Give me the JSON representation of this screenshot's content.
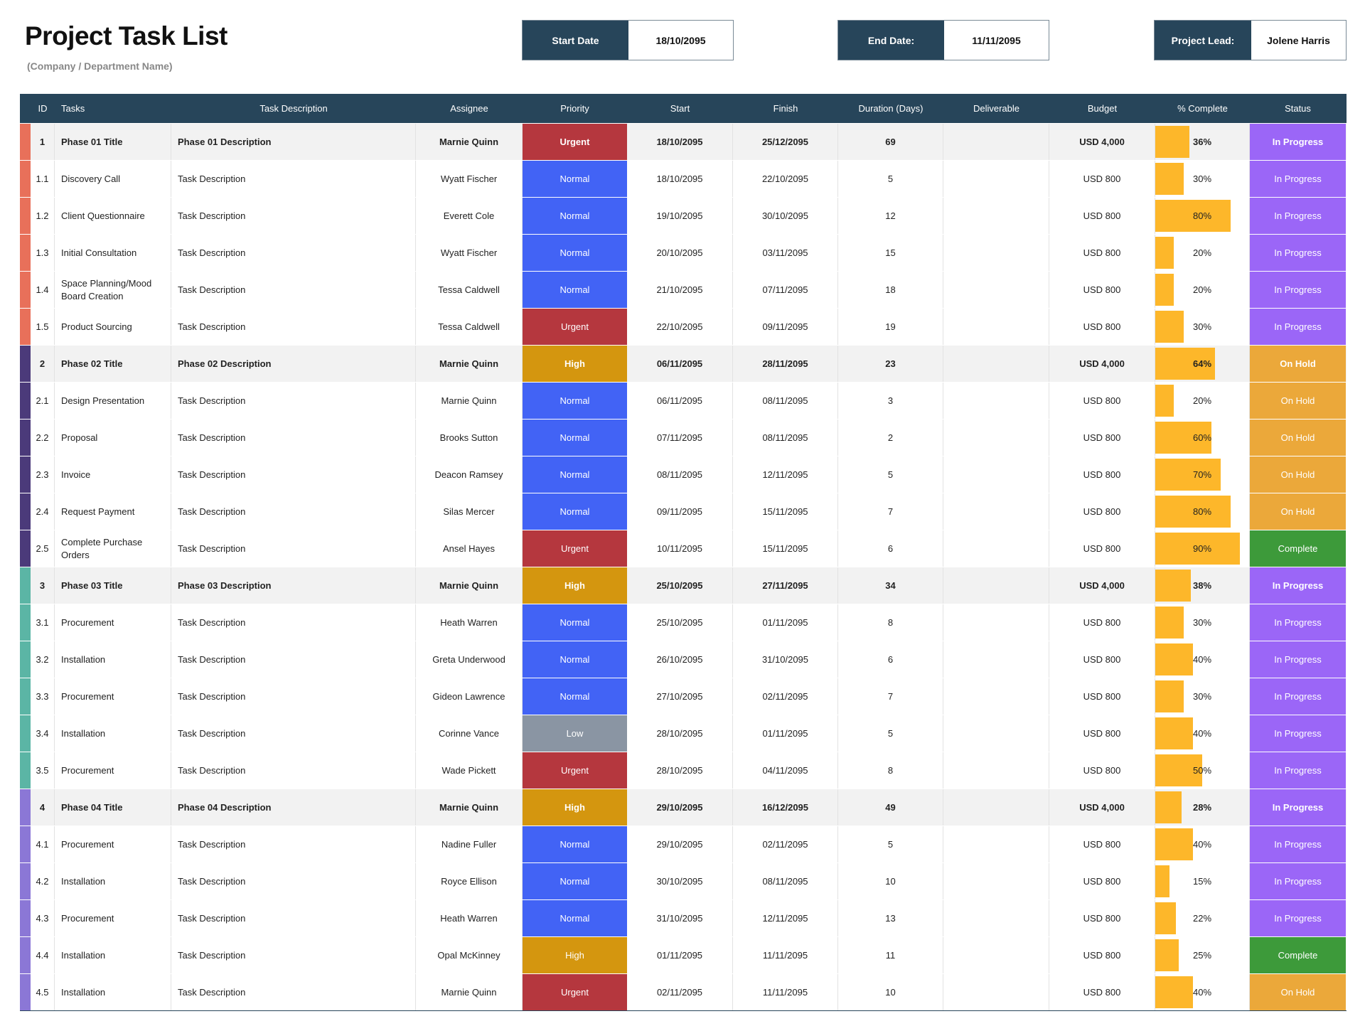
{
  "header": {
    "title": "Project Task List",
    "subtitle": "(Company / Department Name)",
    "start_label": "Start Date",
    "start_value": "18/10/2095",
    "end_label": "End Date:",
    "end_value": "11/11/2095",
    "lead_label": "Project Lead:",
    "lead_value": "Jolene Harris"
  },
  "columns": [
    "ID",
    "Tasks",
    "Task Description",
    "Assignee",
    "Priority",
    "Start",
    "Finish",
    "Duration (Days)",
    "Deliverable",
    "Budget",
    "% Complete",
    "Status"
  ],
  "colors": {
    "header": "#27455a",
    "Urgent": "#b5373e",
    "Normal": "#4263f5",
    "High": "#d4960f",
    "Low": "#8a95a3",
    "In Progress": "#9b66f7",
    "On Hold": "#eba83a",
    "Complete": "#3d9a3a",
    "bar": "#fdb72a",
    "phase_1": "#e8705a",
    "phase_2": "#4b3a7a",
    "phase_3": "#5bb5a5",
    "phase_4": "#8b77d6"
  },
  "rows": [
    {
      "phase": 1,
      "is_phase": true,
      "id": "1",
      "task": "Phase 01 Title",
      "desc": "Phase 01 Description",
      "assignee": "Marnie Quinn",
      "priority": "Urgent",
      "start": "18/10/2095",
      "finish": "25/12/2095",
      "duration": "69",
      "deliverable": "",
      "budget": "USD 4,000",
      "complete": "36%",
      "status": "In Progress"
    },
    {
      "phase": 1,
      "id": "1.1",
      "task": "Discovery Call",
      "desc": "Task Description",
      "assignee": "Wyatt Fischer",
      "priority": "Normal",
      "start": "18/10/2095",
      "finish": "22/10/2095",
      "duration": "5",
      "deliverable": "",
      "budget": "USD 800",
      "complete": "30%",
      "status": "In Progress"
    },
    {
      "phase": 1,
      "id": "1.2",
      "task": "Client Questionnaire",
      "desc": "Task Description",
      "assignee": "Everett Cole",
      "priority": "Normal",
      "start": "19/10/2095",
      "finish": "30/10/2095",
      "duration": "12",
      "deliverable": "",
      "budget": "USD 800",
      "complete": "80%",
      "status": "In Progress"
    },
    {
      "phase": 1,
      "id": "1.3",
      "task": "Initial Consultation",
      "desc": "Task Description",
      "assignee": "Wyatt Fischer",
      "priority": "Normal",
      "start": "20/10/2095",
      "finish": "03/11/2095",
      "duration": "15",
      "deliverable": "",
      "budget": "USD 800",
      "complete": "20%",
      "status": "In Progress"
    },
    {
      "phase": 1,
      "id": "1.4",
      "task": "Space Planning/Mood Board Creation",
      "desc": "Task Description",
      "assignee": "Tessa Caldwell",
      "priority": "Normal",
      "start": "21/10/2095",
      "finish": "07/11/2095",
      "duration": "18",
      "deliverable": "",
      "budget": "USD 800",
      "complete": "20%",
      "status": "In Progress"
    },
    {
      "phase": 1,
      "id": "1.5",
      "task": "Product Sourcing",
      "desc": "Task Description",
      "assignee": "Tessa Caldwell",
      "priority": "Urgent",
      "start": "22/10/2095",
      "finish": "09/11/2095",
      "duration": "19",
      "deliverable": "",
      "budget": "USD 800",
      "complete": "30%",
      "status": "In Progress"
    },
    {
      "phase": 2,
      "is_phase": true,
      "id": "2",
      "task": "Phase 02 Title",
      "desc": "Phase 02 Description",
      "assignee": "Marnie Quinn",
      "priority": "High",
      "start": "06/11/2095",
      "finish": "28/11/2095",
      "duration": "23",
      "deliverable": "",
      "budget": "USD 4,000",
      "complete": "64%",
      "status": "On Hold"
    },
    {
      "phase": 2,
      "id": "2.1",
      "task": "Design Presentation",
      "desc": "Task Description",
      "assignee": "Marnie Quinn",
      "priority": "Normal",
      "start": "06/11/2095",
      "finish": "08/11/2095",
      "duration": "3",
      "deliverable": "",
      "budget": "USD 800",
      "complete": "20%",
      "status": "On Hold"
    },
    {
      "phase": 2,
      "id": "2.2",
      "task": "Proposal",
      "desc": "Task Description",
      "assignee": "Brooks Sutton",
      "priority": "Normal",
      "start": "07/11/2095",
      "finish": "08/11/2095",
      "duration": "2",
      "deliverable": "",
      "budget": "USD 800",
      "complete": "60%",
      "status": "On Hold"
    },
    {
      "phase": 2,
      "id": "2.3",
      "task": "Invoice",
      "desc": "Task Description",
      "assignee": "Deacon Ramsey",
      "priority": "Normal",
      "start": "08/11/2095",
      "finish": "12/11/2095",
      "duration": "5",
      "deliverable": "",
      "budget": "USD 800",
      "complete": "70%",
      "status": "On Hold"
    },
    {
      "phase": 2,
      "id": "2.4",
      "task": "Request Payment",
      "desc": "Task Description",
      "assignee": "Silas Mercer",
      "priority": "Normal",
      "start": "09/11/2095",
      "finish": "15/11/2095",
      "duration": "7",
      "deliverable": "",
      "budget": "USD 800",
      "complete": "80%",
      "status": "On Hold"
    },
    {
      "phase": 2,
      "id": "2.5",
      "task": "Complete Purchase Orders",
      "desc": "Task Description",
      "assignee": "Ansel Hayes",
      "priority": "Urgent",
      "start": "10/11/2095",
      "finish": "15/11/2095",
      "duration": "6",
      "deliverable": "",
      "budget": "USD 800",
      "complete": "90%",
      "status": "Complete"
    },
    {
      "phase": 3,
      "is_phase": true,
      "id": "3",
      "task": "Phase 03 Title",
      "desc": "Phase 03 Description",
      "assignee": "Marnie Quinn",
      "priority": "High",
      "start": "25/10/2095",
      "finish": "27/11/2095",
      "duration": "34",
      "deliverable": "",
      "budget": "USD 4,000",
      "complete": "38%",
      "status": "In Progress"
    },
    {
      "phase": 3,
      "id": "3.1",
      "task": "Procurement",
      "desc": "Task Description",
      "assignee": "Heath Warren",
      "priority": "Normal",
      "start": "25/10/2095",
      "finish": "01/11/2095",
      "duration": "8",
      "deliverable": "",
      "budget": "USD 800",
      "complete": "30%",
      "status": "In Progress"
    },
    {
      "phase": 3,
      "id": "3.2",
      "task": "Installation",
      "desc": "Task Description",
      "assignee": "Greta Underwood",
      "priority": "Normal",
      "start": "26/10/2095",
      "finish": "31/10/2095",
      "duration": "6",
      "deliverable": "",
      "budget": "USD 800",
      "complete": "40%",
      "status": "In Progress"
    },
    {
      "phase": 3,
      "id": "3.3",
      "task": "Procurement",
      "desc": "Task Description",
      "assignee": "Gideon Lawrence",
      "priority": "Normal",
      "start": "27/10/2095",
      "finish": "02/11/2095",
      "duration": "7",
      "deliverable": "",
      "budget": "USD 800",
      "complete": "30%",
      "status": "In Progress"
    },
    {
      "phase": 3,
      "id": "3.4",
      "task": "Installation",
      "desc": "Task Description",
      "assignee": "Corinne Vance",
      "priority": "Low",
      "start": "28/10/2095",
      "finish": "01/11/2095",
      "duration": "5",
      "deliverable": "",
      "budget": "USD 800",
      "complete": "40%",
      "status": "In Progress"
    },
    {
      "phase": 3,
      "id": "3.5",
      "task": "Procurement",
      "desc": "Task Description",
      "assignee": "Wade Pickett",
      "priority": "Urgent",
      "start": "28/10/2095",
      "finish": "04/11/2095",
      "duration": "8",
      "deliverable": "",
      "budget": "USD 800",
      "complete": "50%",
      "status": "In Progress"
    },
    {
      "phase": 4,
      "is_phase": true,
      "id": "4",
      "task": "Phase 04 Title",
      "desc": "Phase 04 Description",
      "assignee": "Marnie Quinn",
      "priority": "High",
      "start": "29/10/2095",
      "finish": "16/12/2095",
      "duration": "49",
      "deliverable": "",
      "budget": "USD 4,000",
      "complete": "28%",
      "status": "In Progress"
    },
    {
      "phase": 4,
      "id": "4.1",
      "task": "Procurement",
      "desc": "Task Description",
      "assignee": "Nadine Fuller",
      "priority": "Normal",
      "start": "29/10/2095",
      "finish": "02/11/2095",
      "duration": "5",
      "deliverable": "",
      "budget": "USD 800",
      "complete": "40%",
      "status": "In Progress"
    },
    {
      "phase": 4,
      "id": "4.2",
      "task": "Installation",
      "desc": "Task Description",
      "assignee": "Royce Ellison",
      "priority": "Normal",
      "start": "30/10/2095",
      "finish": "08/11/2095",
      "duration": "10",
      "deliverable": "",
      "budget": "USD 800",
      "complete": "15%",
      "status": "In Progress"
    },
    {
      "phase": 4,
      "id": "4.3",
      "task": "Procurement",
      "desc": "Task Description",
      "assignee": "Heath Warren",
      "priority": "Normal",
      "start": "31/10/2095",
      "finish": "12/11/2095",
      "duration": "13",
      "deliverable": "",
      "budget": "USD 800",
      "complete": "22%",
      "status": "In Progress"
    },
    {
      "phase": 4,
      "id": "4.4",
      "task": "Installation",
      "desc": "Task Description",
      "assignee": "Opal McKinney",
      "priority": "High",
      "start": "01/11/2095",
      "finish": "11/11/2095",
      "duration": "11",
      "deliverable": "",
      "budget": "USD 800",
      "complete": "25%",
      "status": "Complete"
    },
    {
      "phase": 4,
      "id": "4.5",
      "task": "Installation",
      "desc": "Task Description",
      "assignee": "Marnie Quinn",
      "priority": "Urgent",
      "start": "02/11/2095",
      "finish": "11/11/2095",
      "duration": "10",
      "deliverable": "",
      "budget": "USD 800",
      "complete": "40%",
      "status": "On Hold"
    }
  ]
}
